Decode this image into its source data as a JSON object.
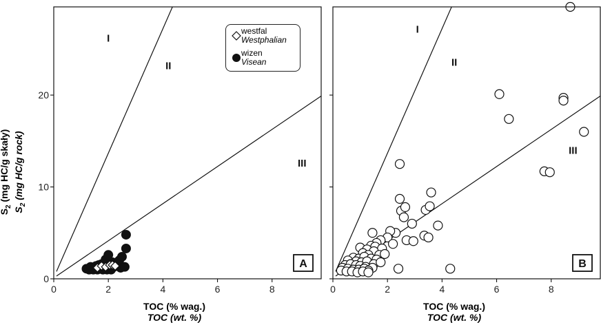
{
  "y_axis_label": {
    "pl_prefix": "S",
    "pl_sub": "2",
    "pl_suffix": " (mg HC/g skały)",
    "en_prefix": "S",
    "en_sub": "2",
    "en_suffix": " (mg HC/g rock)"
  },
  "x_axis_label": {
    "pl": "TOC (% wag.)",
    "en": "TOC (wt. %)"
  },
  "legend": {
    "westfal": {
      "pl": "westfal",
      "en": "Westphalian",
      "symbol": "open-diamond"
    },
    "wizen": {
      "pl": "wizen",
      "en": "Visean",
      "symbol": "filled-circle"
    }
  },
  "chart_data": [
    {
      "type": "scatter",
      "panel_label": "A",
      "xlim": [
        0,
        9.8
      ],
      "ylim": [
        0,
        29.6
      ],
      "x_ticks": [
        0,
        2,
        4,
        6,
        8
      ],
      "x_tick_labels": [
        "0",
        "2",
        "4",
        "6",
        "8"
      ],
      "y_ticks": [
        0,
        10,
        20
      ],
      "y_tick_labels": [
        "0",
        "10",
        "20"
      ],
      "grid": false,
      "legend_position": "top-right",
      "kerogen_lines": [
        {
          "label": "I",
          "x": [
            0.1,
            4.35
          ],
          "y": [
            0.8,
            29.6
          ]
        },
        {
          "label": "II",
          "x": [
            0.1,
            4.35
          ],
          "y": [
            0.8,
            29.6
          ]
        },
        {
          "label": "III",
          "x": [
            0.1,
            9.8
          ],
          "y": [
            0.3,
            19.9
          ]
        }
      ],
      "region_labels": [
        {
          "text": "I",
          "x": 2.0,
          "y": 25.8
        },
        {
          "text": "II",
          "x": 4.2,
          "y": 22.8
        },
        {
          "text": "III",
          "x": 9.1,
          "y": 12.2
        }
      ],
      "series": [
        {
          "name": "wizen",
          "symbol": "filled-circle",
          "points": [
            [
              1.2,
              1.1
            ],
            [
              1.3,
              1.0
            ],
            [
              1.35,
              1.3
            ],
            [
              1.45,
              1.0
            ],
            [
              1.5,
              1.2
            ],
            [
              1.55,
              1.4
            ],
            [
              1.6,
              1.0
            ],
            [
              1.65,
              1.5
            ],
            [
              1.7,
              1.2
            ],
            [
              1.75,
              1.6
            ],
            [
              1.8,
              1.0
            ],
            [
              1.85,
              1.3
            ],
            [
              1.9,
              2.1
            ],
            [
              1.95,
              1.0
            ],
            [
              2.0,
              2.6
            ],
            [
              2.05,
              1.5
            ],
            [
              2.1,
              1.0
            ],
            [
              2.15,
              1.8
            ],
            [
              2.2,
              1.3
            ],
            [
              2.3,
              1.6
            ],
            [
              2.4,
              2.0
            ],
            [
              2.45,
              1.2
            ],
            [
              2.5,
              2.4
            ],
            [
              2.6,
              1.3
            ],
            [
              2.65,
              3.3
            ],
            [
              2.65,
              4.8
            ]
          ]
        },
        {
          "name": "westfal",
          "symbol": "open-diamond",
          "points": [
            [
              1.6,
              1.2
            ],
            [
              1.75,
              1.4
            ],
            [
              1.9,
              1.3
            ],
            [
              2.05,
              1.5
            ],
            [
              2.15,
              1.5
            ],
            [
              2.25,
              1.4
            ]
          ]
        }
      ]
    },
    {
      "type": "scatter",
      "panel_label": "B",
      "xlim": [
        0,
        9.8
      ],
      "ylim": [
        0,
        29.6
      ],
      "x_ticks": [
        0,
        2,
        4,
        6,
        8
      ],
      "x_tick_labels": [
        "0",
        "2",
        "4",
        "6",
        "8"
      ],
      "y_ticks": [
        0,
        10,
        20
      ],
      "y_tick_labels": [
        "",
        "",
        ""
      ],
      "grid": false,
      "kerogen_lines": [
        {
          "label": "I",
          "x": [
            0.1,
            4.35
          ],
          "y": [
            0.8,
            29.6
          ]
        },
        {
          "label": "II",
          "x": [
            0.1,
            4.35
          ],
          "y": [
            0.8,
            29.6
          ]
        },
        {
          "label": "III",
          "x": [
            0.1,
            9.8
          ],
          "y": [
            0.3,
            19.9
          ]
        }
      ],
      "region_labels": [
        {
          "text": "I",
          "x": 3.1,
          "y": 26.8
        },
        {
          "text": "II",
          "x": 4.45,
          "y": 23.2
        },
        {
          "text": "III",
          "x": 8.8,
          "y": 13.6
        }
      ],
      "series": [
        {
          "name": "westfal",
          "symbol": "open-circle",
          "points": [
            [
              8.7,
              29.6
            ],
            [
              6.1,
              20.1
            ],
            [
              8.45,
              19.7
            ],
            [
              8.45,
              19.4
            ],
            [
              6.45,
              17.4
            ],
            [
              9.2,
              16.0
            ],
            [
              7.75,
              11.7
            ],
            [
              7.95,
              11.6
            ],
            [
              2.45,
              12.5
            ],
            [
              3.6,
              9.4
            ],
            [
              2.45,
              8.7
            ],
            [
              2.5,
              7.4
            ],
            [
              3.4,
              7.5
            ],
            [
              2.65,
              7.8
            ],
            [
              3.55,
              7.9
            ],
            [
              2.6,
              6.7
            ],
            [
              3.85,
              5.8
            ],
            [
              2.9,
              6.0
            ],
            [
              2.3,
              5.0
            ],
            [
              2.1,
              5.2
            ],
            [
              1.45,
              5.0
            ],
            [
              2.0,
              4.5
            ],
            [
              2.7,
              4.2
            ],
            [
              2.95,
              4.1
            ],
            [
              3.35,
              4.7
            ],
            [
              3.5,
              4.5
            ],
            [
              1.75,
              4.2
            ],
            [
              1.6,
              3.9
            ],
            [
              2.2,
              3.8
            ],
            [
              1.4,
              3.6
            ],
            [
              1.55,
              3.5
            ],
            [
              1.8,
              3.3
            ],
            [
              1.0,
              3.4
            ],
            [
              1.25,
              3.2
            ],
            [
              1.5,
              3.0
            ],
            [
              1.1,
              2.8
            ],
            [
              1.3,
              2.6
            ],
            [
              1.7,
              2.6
            ],
            [
              1.9,
              2.7
            ],
            [
              0.75,
              2.3
            ],
            [
              0.95,
              2.2
            ],
            [
              1.15,
              2.4
            ],
            [
              1.4,
              2.2
            ],
            [
              1.6,
              2.1
            ],
            [
              0.55,
              2.0
            ],
            [
              0.85,
              1.9
            ],
            [
              1.05,
              1.8
            ],
            [
              1.25,
              1.9
            ],
            [
              1.5,
              1.6
            ],
            [
              1.75,
              1.8
            ],
            [
              0.45,
              1.5
            ],
            [
              0.65,
              1.6
            ],
            [
              0.85,
              1.5
            ],
            [
              1.0,
              1.4
            ],
            [
              1.2,
              1.3
            ],
            [
              1.45,
              1.2
            ],
            [
              0.35,
              1.2
            ],
            [
              0.55,
              1.1
            ],
            [
              0.75,
              1.0
            ],
            [
              0.95,
              1.0
            ],
            [
              1.15,
              1.1
            ],
            [
              1.3,
              0.9
            ],
            [
              0.3,
              0.9
            ],
            [
              0.5,
              0.8
            ],
            [
              0.7,
              0.8
            ],
            [
              0.9,
              0.7
            ],
            [
              1.1,
              0.8
            ],
            [
              1.3,
              0.7
            ],
            [
              2.4,
              1.1
            ],
            [
              4.3,
              1.1
            ]
          ]
        }
      ]
    }
  ]
}
